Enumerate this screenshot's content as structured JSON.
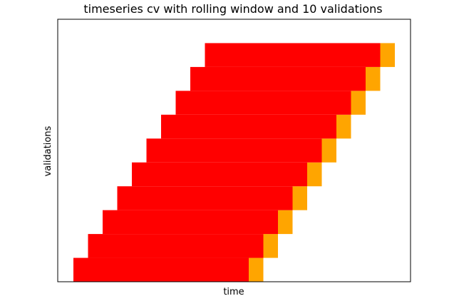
{
  "chart_data": {
    "type": "bar",
    "title": "timeseries cv with rolling window and 10 validations",
    "xlabel": "time",
    "ylabel": "validations",
    "x_ticks": "none",
    "y_ticks": "none",
    "grid": false,
    "legend": "none",
    "colors": {
      "train": "#ff0000",
      "validation": "#ffa500"
    },
    "xlim": [
      0,
      23
    ],
    "ylim": [
      -0.5,
      10.5
    ],
    "series": [
      {
        "train_start": 1,
        "train_end": 13,
        "validation_end": 14
      },
      {
        "train_start": 2,
        "train_end": 14,
        "validation_end": 15
      },
      {
        "train_start": 3,
        "train_end": 15,
        "validation_end": 16
      },
      {
        "train_start": 4,
        "train_end": 16,
        "validation_end": 17
      },
      {
        "train_start": 5,
        "train_end": 17,
        "validation_end": 18
      },
      {
        "train_start": 6,
        "train_end": 18,
        "validation_end": 19
      },
      {
        "train_start": 7,
        "train_end": 19,
        "validation_end": 20
      },
      {
        "train_start": 8,
        "train_end": 20,
        "validation_end": 21
      },
      {
        "train_start": 9,
        "train_end": 21,
        "validation_end": 22
      },
      {
        "train_start": 10,
        "train_end": 22,
        "validation_end": 23
      }
    ]
  }
}
